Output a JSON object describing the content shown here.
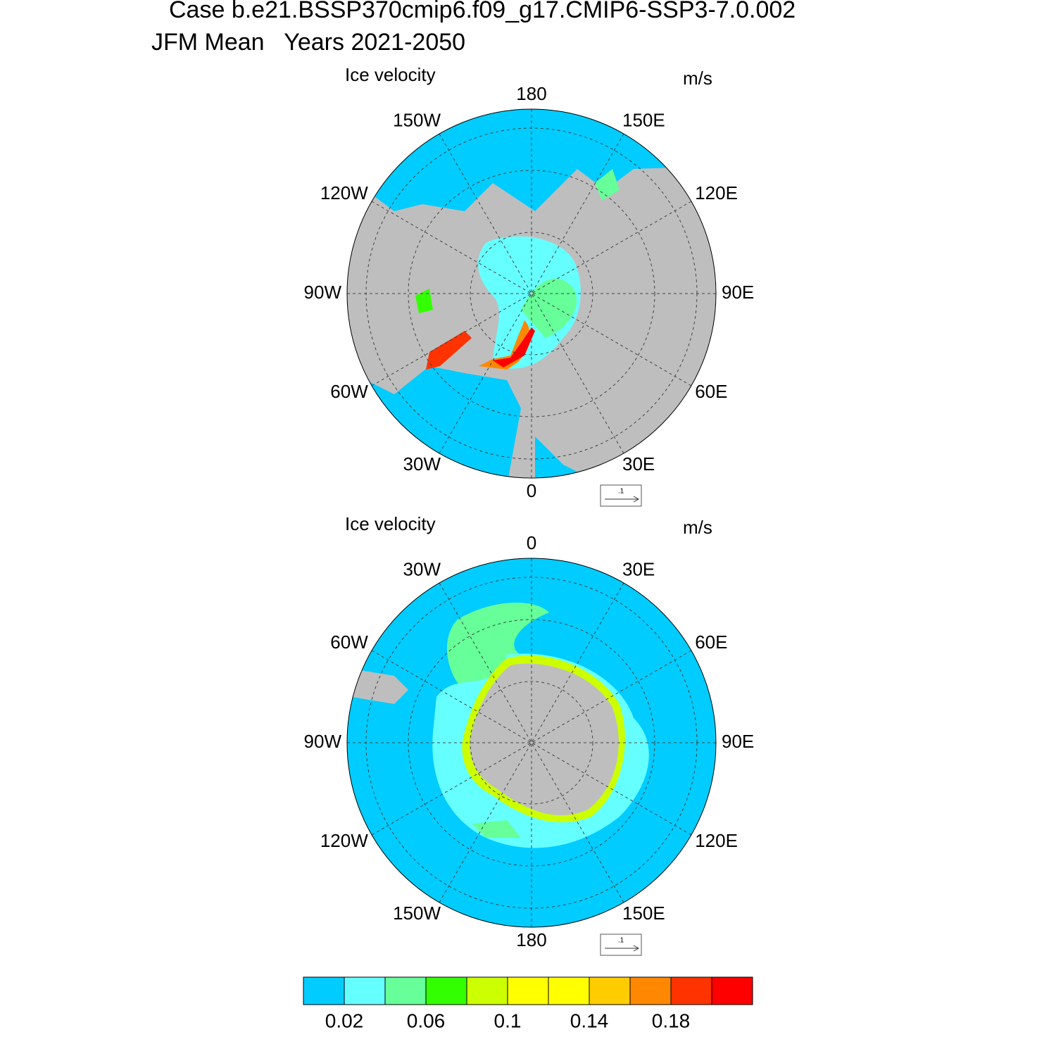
{
  "title": [
    "Case b.e21.BSSP370cmip6.f09_g17.CMIP6-SSP3-7.0.002",
    "JFM Mean   Years 2021-2050"
  ],
  "panels": [
    {
      "label": "Ice velocity",
      "units": "m/s",
      "ref_label": ".1",
      "lon_labels": [
        "0",
        "30E",
        "60E",
        "90E",
        "120E",
        "150E",
        "180",
        "150W",
        "120W",
        "90W",
        "60W",
        "30W"
      ]
    },
    {
      "label": "Ice velocity",
      "units": "m/s",
      "ref_label": ".1",
      "lon_labels": [
        "0",
        "30E",
        "60E",
        "90E",
        "120E",
        "150E",
        "180",
        "150W",
        "120W",
        "90W",
        "60W",
        "30W"
      ]
    }
  ],
  "colorbar": {
    "colors": [
      "#00ccff",
      "#66ffff",
      "#66ff99",
      "#33ff00",
      "#ccff00",
      "#ffff00",
      "#ffff00",
      "#ffcc00",
      "#ff8800",
      "#ff3300",
      "#ff0000"
    ],
    "lim": [
      0,
      0.22
    ],
    "ticks": [
      0.02,
      0.06,
      0.1,
      0.14,
      0.18
    ]
  }
}
